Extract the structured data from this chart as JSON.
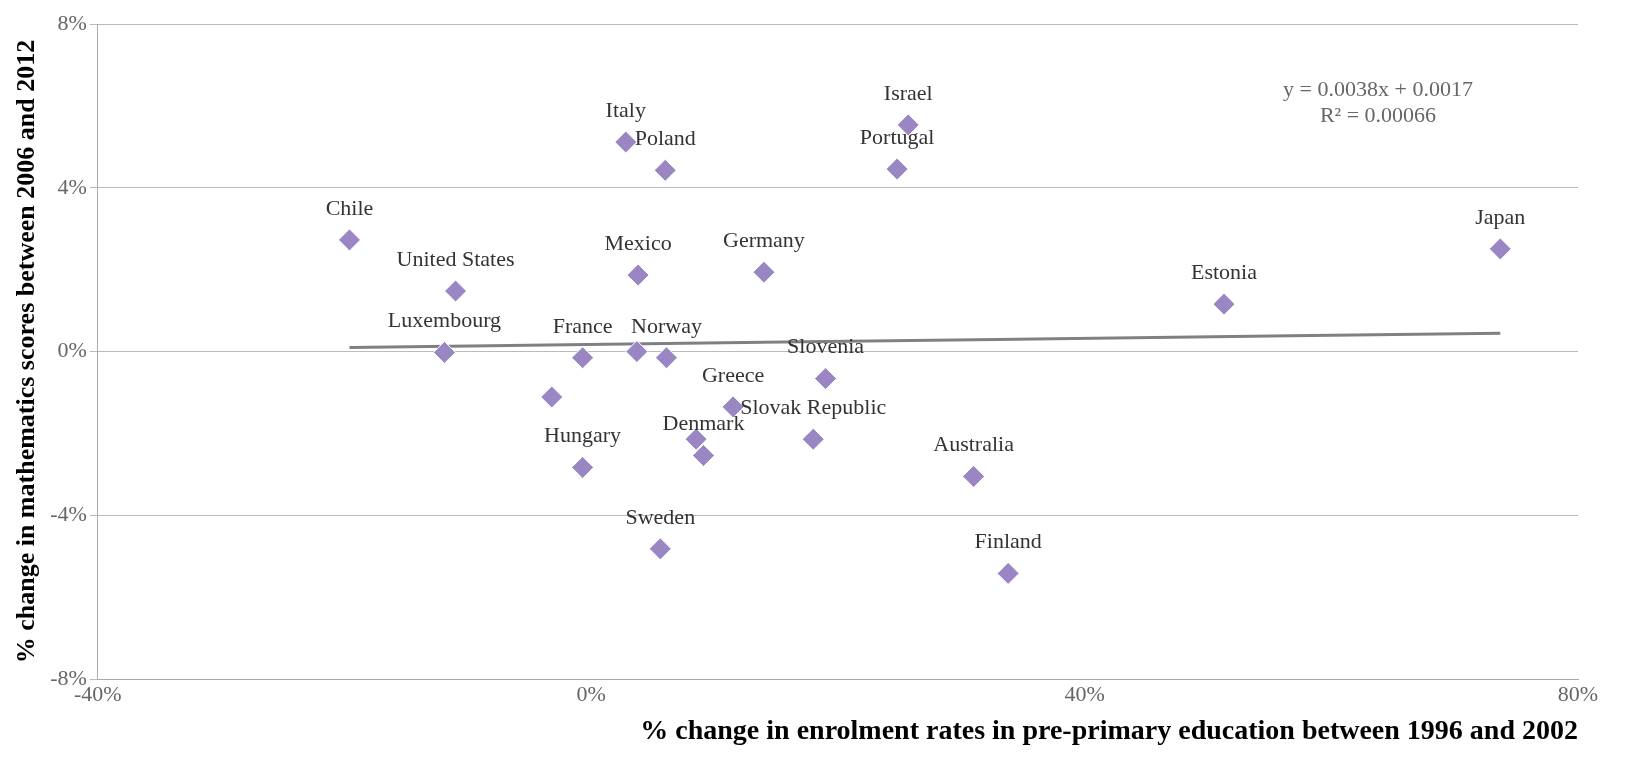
{
  "chart_data": {
    "type": "scatter",
    "xlabel": "% change in enrolment rates in pre-primary education between 1996 and 2002",
    "ylabel": "% change in mathematics scores between 2006 and 2012",
    "xlim": [
      -40,
      80
    ],
    "ylim": [
      -8,
      8
    ],
    "xticks": [
      {
        "value": -40,
        "label": "-40%"
      },
      {
        "value": 0,
        "label": "0%"
      },
      {
        "value": 40,
        "label": "40%"
      },
      {
        "value": 80,
        "label": "80%"
      }
    ],
    "yticks": [
      {
        "value": -8,
        "label": "-8%"
      },
      {
        "value": -4,
        "label": "-4%"
      },
      {
        "value": 0,
        "label": "0%"
      },
      {
        "value": 4,
        "label": "4%"
      },
      {
        "value": 8,
        "label": "8%"
      }
    ],
    "grid": "y",
    "legend": false,
    "annotations": [
      "y = 0.0038x + 0.0017\nR² = 0.00066",
      {
        "text": "Chile",
        "x": -19.6,
        "y": 2.73
      },
      {
        "text": "United States",
        "x": -11.0,
        "y": 1.48
      },
      {
        "text": "Luxembourg",
        "x": -11.9,
        "y": -0.02
      },
      {
        "text": "France",
        "x": -0.7,
        "y": -0.15
      },
      {
        "text": "Hungary",
        "x": -0.7,
        "y": -2.83
      },
      {
        "text": "Italy",
        "x": 2.8,
        "y": 5.12
      },
      {
        "text": "Mexico",
        "x": 3.8,
        "y": 1.87
      },
      {
        "text": "Norway",
        "x": 6.1,
        "y": -0.15
      },
      {
        "text": "Poland",
        "x": 6.0,
        "y": 4.43
      },
      {
        "text": "Sweden",
        "x": 5.6,
        "y": -4.82
      },
      {
        "text": "Denmark",
        "x": 9.1,
        "y": -2.54
      },
      {
        "text": "Greece",
        "x": 11.5,
        "y": -1.35
      },
      {
        "text": "Germany",
        "x": 14.0,
        "y": 1.94
      },
      {
        "text": "Slovak Republic",
        "x": 18.0,
        "y": -2.14
      },
      {
        "text": "Slovenia",
        "x": 19.0,
        "y": -0.66
      },
      {
        "text": "Portugal",
        "x": 24.8,
        "y": 4.46
      },
      {
        "text": "Israel",
        "x": 25.7,
        "y": 5.54
      },
      {
        "text": "Australia",
        "x": 31.0,
        "y": -3.05
      },
      {
        "text": "Finland",
        "x": 33.8,
        "y": -5.42
      },
      {
        "text": "Estonia",
        "x": 51.3,
        "y": 1.16
      },
      {
        "text": "Japan",
        "x": 73.7,
        "y": 2.51
      }
    ],
    "series": [
      {
        "color": "#9b86c4",
        "marker": "diamond",
        "x": [
          -19.6,
          -11.0,
          -11.9,
          -3.2,
          -0.7,
          -0.7,
          2.8,
          3.8,
          3.7,
          6.1,
          6.0,
          5.6,
          8.5,
          9.1,
          11.5,
          14.0,
          18.0,
          19.0,
          24.8,
          25.7,
          31.0,
          33.8,
          51.3,
          73.7
        ],
        "values": [
          2.73,
          1.48,
          -0.02,
          -1.11,
          -0.15,
          -2.83,
          5.12,
          1.87,
          0.0,
          -0.15,
          4.43,
          -4.82,
          -2.14,
          -2.54,
          -1.35,
          1.94,
          -2.14,
          -0.66,
          4.46,
          5.54,
          -3.05,
          -5.42,
          1.16,
          2.51
        ]
      },
      {
        "type": "line",
        "marker": "none",
        "color": "#808080",
        "x": [
          -19.6,
          73.7
        ],
        "values": [
          0.1,
          0.45
        ]
      }
    ]
  }
}
